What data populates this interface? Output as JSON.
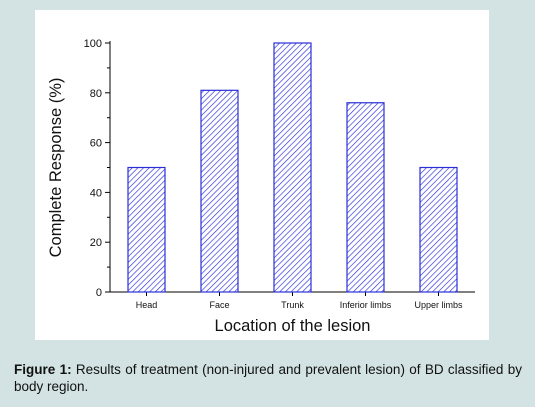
{
  "chart_data": {
    "type": "bar",
    "categories": [
      "Head",
      "Face",
      "Trunk",
      "Inferior limbs",
      "Upper limbs"
    ],
    "values": [
      50,
      81,
      100,
      76,
      50
    ],
    "xlabel": "Location of the lesion",
    "ylabel": "Complete Response (%)",
    "ylim": [
      0,
      100
    ],
    "yticks": [
      0,
      20,
      40,
      60,
      80,
      100
    ],
    "grid": false,
    "bar_fill": "hatched",
    "bar_color": "#2a2fd6"
  },
  "caption": {
    "label": "Figure 1:",
    "text": " Results of treatment (non-injured and prevalent lesion) of BD classified by body region."
  }
}
